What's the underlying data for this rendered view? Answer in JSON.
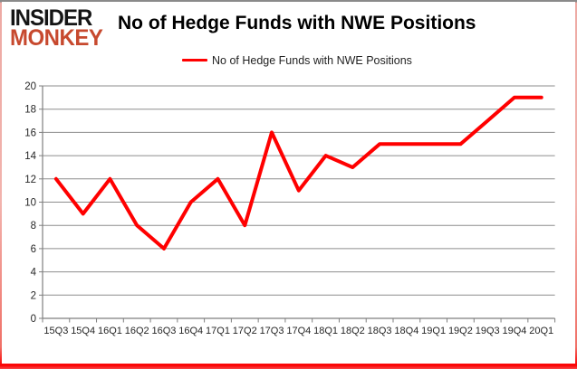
{
  "logo": {
    "line1": "INSIDER",
    "line2": "MONKEY",
    "line1_color": "#151515",
    "line2_color": "#c7492e"
  },
  "header": {
    "title": "No of Hedge Funds with NWE Positions"
  },
  "legend": {
    "label": "No of Hedge Funds with NWE Positions",
    "swatch_color": "#ff0000"
  },
  "colors": {
    "series_line": "#ff0000",
    "gridline": "#8e8e8e",
    "axis": "#7f7f7f",
    "axis_label": "#262626",
    "frame_top": "#8a8a8a",
    "frame_side": "#f2b3ad",
    "frame_bottom": "#fb0203"
  },
  "chart_data": {
    "type": "line",
    "title": "No of Hedge Funds with NWE Positions",
    "categories": [
      "15Q3",
      "15Q4",
      "16Q1",
      "16Q2",
      "16Q3",
      "16Q4",
      "17Q1",
      "17Q2",
      "17Q3",
      "17Q4",
      "18Q1",
      "18Q2",
      "18Q3",
      "18Q4",
      "19Q1",
      "19Q2",
      "19Q3",
      "19Q4",
      "20Q1"
    ],
    "series": [
      {
        "name": "No of Hedge Funds with NWE Positions",
        "color": "#ff0000",
        "values": [
          12,
          9,
          12,
          8,
          6,
          10,
          12,
          8,
          16,
          11,
          14,
          13,
          15,
          15,
          15,
          15,
          17,
          19,
          19
        ]
      }
    ],
    "xlabel": "",
    "ylabel": "",
    "ylim": [
      0,
      20
    ],
    "ytick_step": 2,
    "grid": true,
    "legend_position": "top-center"
  }
}
